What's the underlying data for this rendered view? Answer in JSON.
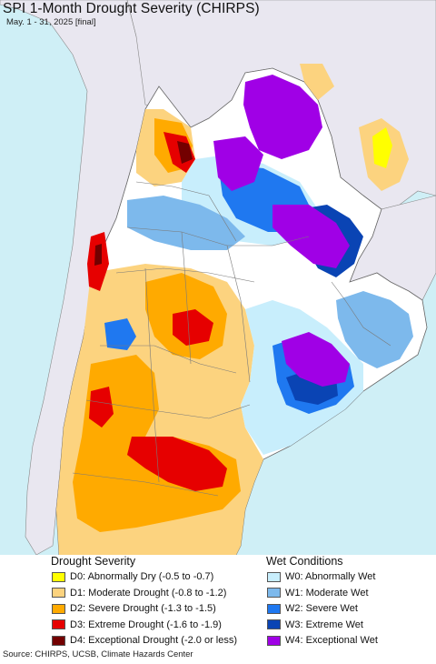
{
  "title": "SPI 1-Month Drought Severity (CHIRPS)",
  "subtitle": "May. 1 - 31, 2025 [final]",
  "colors": {
    "ocean": "#cfeff6",
    "neighbor_land": "#e9e7f0",
    "boundary": "#777777"
  },
  "legend": {
    "drought_heading": "Drought Severity",
    "wet_heading": "Wet Conditions",
    "drought": [
      {
        "label": "D0: Abnormally Dry (-0.5 to -0.7)",
        "color": "#ffff00"
      },
      {
        "label": "D1: Moderate Drought (-0.8 to -1.2)",
        "color": "#fcd37f"
      },
      {
        "label": "D2: Severe Drought (-1.3 to -1.5)",
        "color": "#ffaa00"
      },
      {
        "label": "D3: Extreme Drought (-1.6 to -1.9)",
        "color": "#e60000"
      },
      {
        "label": "D4: Exceptional Drought (-2.0 or less)",
        "color": "#730000"
      }
    ],
    "wet": [
      {
        "label": "W0: Abnormally Wet",
        "color": "#c8eefc"
      },
      {
        "label": "W1: Moderate Wet",
        "color": "#7db9ec"
      },
      {
        "label": "W2: Severe Wet",
        "color": "#1f78f0"
      },
      {
        "label": "W3: Extreme Wet",
        "color": "#0a44b4"
      },
      {
        "label": "W4: Exceptional Wet",
        "color": "#a000e6"
      }
    ]
  },
  "source": "Source: CHIRPS, UCSB, Climate Hazards Center"
}
